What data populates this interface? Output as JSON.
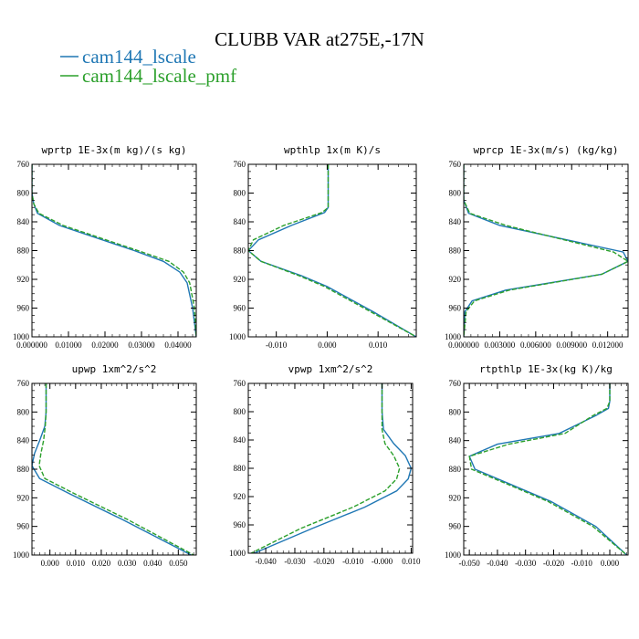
{
  "figure": {
    "title": "CLUBB VAR at275E,-17N",
    "legend": [
      {
        "label": "cam144_lscale",
        "color": "#1f77b4",
        "dash": "solid"
      },
      {
        "label": "cam144_lscale_pmf",
        "color": "#2ca02c",
        "dash": "dashed"
      }
    ]
  },
  "chart_data": [
    {
      "type": "line",
      "title": "wprtp  1E-3x(m kg)/(s kg)",
      "xlim": [
        0.0,
        0.045
      ],
      "ylim": [
        760,
        1000
      ],
      "y_inverted": true,
      "xticks": [
        0.0,
        0.01,
        0.02,
        0.03,
        0.04
      ],
      "xtick_labels": [
        "0.000000",
        "0.01000",
        "0.02000",
        "0.03000",
        "0.04000"
      ],
      "yticks": [
        760,
        800,
        840,
        880,
        920,
        960,
        1000
      ],
      "ytick_labels": [
        "760",
        "800",
        "840",
        "880",
        "920",
        "960",
        "1000"
      ],
      "series": [
        {
          "name": "cam144_lscale",
          "x": [
            0.0,
            0.0,
            0.0005,
            0.0015,
            0.0075,
            0.028,
            0.036,
            0.0405,
            0.0425,
            0.044,
            0.045
          ],
          "y": [
            760,
            800,
            815,
            828,
            845,
            880,
            895,
            910,
            925,
            960,
            1000
          ]
        },
        {
          "name": "cam144_lscale_pmf",
          "x": [
            0.0,
            0.0,
            0.0005,
            0.0019,
            0.0085,
            0.029,
            0.0375,
            0.0415,
            0.0432,
            0.0445,
            0.045
          ],
          "y": [
            760,
            800,
            815,
            828,
            845,
            880,
            895,
            910,
            925,
            960,
            1000
          ]
        }
      ]
    },
    {
      "type": "line",
      "title": "wpthlp  1x(m K)/s",
      "xlim": [
        -0.0155,
        0.0175
      ],
      "ylim": [
        760,
        1000
      ],
      "y_inverted": true,
      "xticks": [
        -0.01,
        0.0,
        0.01
      ],
      "xtick_labels": [
        "-0.010",
        "0.000",
        "0.010"
      ],
      "yticks": [
        760,
        800,
        840,
        880,
        920,
        960,
        1000
      ],
      "ytick_labels": [
        "760",
        "800",
        "840",
        "880",
        "920",
        "960",
        "1000"
      ],
      "series": [
        {
          "name": "cam144_lscale",
          "x": [
            0.0002,
            0.0002,
            -0.0005,
            -0.007,
            -0.0135,
            -0.0155,
            -0.013,
            -0.005,
            0.0,
            0.009,
            0.0175
          ],
          "y": [
            760,
            820,
            827,
            845,
            865,
            880,
            895,
            915,
            930,
            965,
            1000
          ]
        },
        {
          "name": "cam144_lscale_pmf",
          "x": [
            0.0002,
            0.0002,
            -0.001,
            -0.0085,
            -0.0145,
            -0.0155,
            -0.013,
            -0.0055,
            -0.0005,
            0.0085,
            0.0175
          ],
          "y": [
            760,
            820,
            827,
            845,
            865,
            880,
            895,
            915,
            930,
            965,
            1000
          ]
        }
      ]
    },
    {
      "type": "line",
      "title": "wprcp  1E-3x(m/s) (kg/kg)",
      "xlim": [
        0.0,
        0.0137
      ],
      "ylim": [
        760,
        1000
      ],
      "y_inverted": true,
      "xticks": [
        0.0,
        0.003,
        0.006,
        0.009,
        0.012
      ],
      "xtick_labels": [
        "0.000000",
        "0.003000",
        "0.006000",
        "0.009000",
        "0.012000"
      ],
      "yticks": [
        760,
        800,
        840,
        880,
        920,
        960,
        1000
      ],
      "ytick_labels": [
        "760",
        "800",
        "840",
        "880",
        "920",
        "960",
        "1000"
      ],
      "series": [
        {
          "name": "cam144_lscale",
          "x": [
            0.0,
            0.0,
            0.0004,
            0.003,
            0.0133,
            0.0137,
            0.0115,
            0.0035,
            0.0007,
            0.0001,
            0.0
          ],
          "y": [
            760,
            810,
            828,
            845,
            882,
            895,
            913,
            935,
            950,
            965,
            1000
          ]
        },
        {
          "name": "cam144_lscale_pmf",
          "x": [
            0.0,
            0.0,
            0.0005,
            0.0035,
            0.0125,
            0.0137,
            0.0115,
            0.0038,
            0.0009,
            0.0002,
            0.0
          ],
          "y": [
            760,
            810,
            828,
            845,
            882,
            895,
            913,
            935,
            950,
            965,
            1000
          ]
        }
      ]
    },
    {
      "type": "line",
      "title": "upwp  1xm^2/s^2",
      "xlim": [
        -0.007,
        0.057
      ],
      "ylim": [
        760,
        1000
      ],
      "y_inverted": true,
      "xticks": [
        0.0,
        0.01,
        0.02,
        0.03,
        0.04,
        0.05
      ],
      "xtick_labels": [
        "0.000",
        "0.010",
        "0.020",
        "0.030",
        "0.040",
        "0.050"
      ],
      "yticks": [
        760,
        800,
        840,
        880,
        920,
        960,
        1000
      ],
      "ytick_labels": [
        "760",
        "800",
        "840",
        "880",
        "920",
        "960",
        "1000"
      ],
      "series": [
        {
          "name": "cam144_lscale",
          "x": [
            -0.0015,
            -0.0015,
            -0.002,
            -0.004,
            -0.006,
            -0.007,
            -0.004,
            0.008,
            0.028,
            0.055
          ],
          "y": [
            760,
            800,
            820,
            840,
            858,
            875,
            893,
            915,
            950,
            1000
          ]
        },
        {
          "name": "cam144_lscale_pmf",
          "x": [
            -0.0015,
            -0.0015,
            -0.0018,
            -0.0025,
            -0.0035,
            -0.0042,
            -0.002,
            0.01,
            0.03,
            0.056
          ],
          "y": [
            760,
            800,
            820,
            840,
            858,
            875,
            893,
            915,
            950,
            1000
          ]
        }
      ]
    },
    {
      "type": "line",
      "title": "vpwp  1xm^2/s^2",
      "xlim": [
        -0.046,
        0.0105
      ],
      "ylim": [
        760,
        1000
      ],
      "y_inverted": true,
      "xticks": [
        -0.04,
        -0.03,
        -0.02,
        -0.01,
        0.0,
        0.01
      ],
      "xtick_labels": [
        "-0.040",
        "-0.030",
        "-0.020",
        "-0.010",
        "-0.000",
        "0.010"
      ],
      "yticks": [
        760,
        800,
        840,
        880,
        920,
        960,
        1000
      ],
      "ytick_labels": [
        "760",
        "800",
        "840",
        "880",
        "920",
        "960",
        "1000"
      ],
      "series": [
        {
          "name": "cam144_lscale",
          "x": [
            0.0,
            0.0,
            0.0005,
            0.004,
            0.008,
            0.01,
            0.009,
            0.005,
            -0.006,
            -0.024,
            -0.044
          ],
          "y": [
            760,
            800,
            825,
            845,
            862,
            880,
            895,
            912,
            935,
            965,
            1000
          ]
        },
        {
          "name": "cam144_lscale_pmf",
          "x": [
            0.0,
            0.0,
            0.0,
            0.001,
            0.004,
            0.006,
            0.005,
            0.001,
            -0.01,
            -0.028,
            -0.045
          ],
          "y": [
            760,
            800,
            825,
            845,
            862,
            880,
            895,
            912,
            935,
            965,
            1000
          ]
        }
      ]
    },
    {
      "type": "line",
      "title": "rtpthlp  1E-3x(kg K)/kg",
      "xlim": [
        -0.052,
        0.0065
      ],
      "ylim": [
        760,
        1000
      ],
      "y_inverted": true,
      "xticks": [
        -0.05,
        -0.04,
        -0.03,
        -0.02,
        -0.01,
        0.0
      ],
      "xtick_labels": [
        "-0.050",
        "-0.040",
        "-0.030",
        "-0.020",
        "-0.010",
        "0.000"
      ],
      "yticks": [
        760,
        800,
        840,
        880,
        920,
        960,
        1000
      ],
      "ytick_labels": [
        "760",
        "800",
        "840",
        "880",
        "920",
        "960",
        "1000"
      ],
      "series": [
        {
          "name": "cam144_lscale",
          "x": [
            0.0,
            0.0,
            -0.0005,
            -0.005,
            -0.018,
            -0.04,
            -0.05,
            -0.048,
            -0.036,
            -0.021,
            -0.005,
            0.006
          ],
          "y": [
            760,
            785,
            795,
            805,
            830,
            845,
            862,
            880,
            900,
            925,
            960,
            1000
          ]
        },
        {
          "name": "cam144_lscale_pmf",
          "x": [
            0.0,
            0.0,
            -0.001,
            -0.006,
            -0.016,
            -0.036,
            -0.05,
            -0.0492,
            -0.037,
            -0.022,
            -0.006,
            0.006
          ],
          "y": [
            760,
            785,
            795,
            805,
            830,
            845,
            862,
            880,
            900,
            925,
            960,
            1000
          ]
        }
      ]
    }
  ]
}
